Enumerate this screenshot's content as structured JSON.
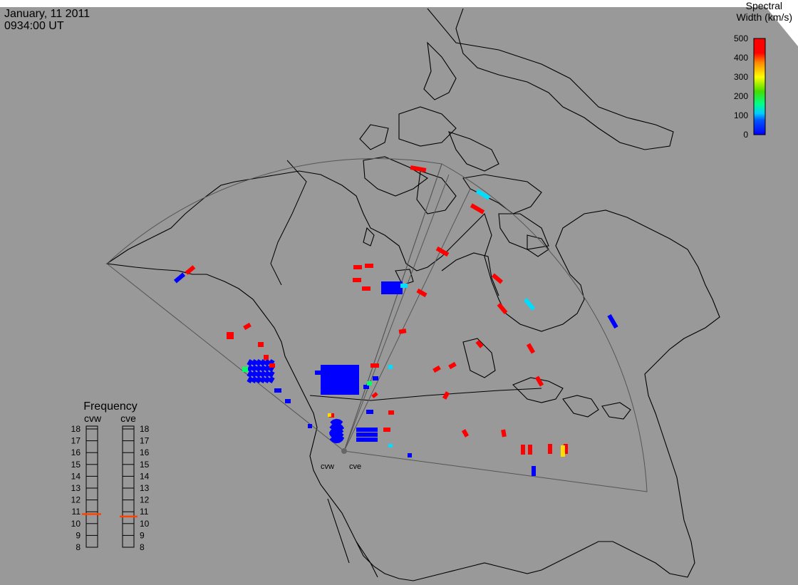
{
  "header": {
    "date": "January, 11 2011",
    "time": "0934:00 UT"
  },
  "colorbar": {
    "title_line1": "Spectral",
    "title_line2": "Width (km/s)",
    "ticks": [
      "500",
      "400",
      "300",
      "200",
      "100",
      "0"
    ],
    "range": [
      0,
      500
    ],
    "colors": [
      "#0000ff",
      "#00aaff",
      "#00ffcc",
      "#33dd00",
      "#ffff00",
      "#ffaa00",
      "#ff0000"
    ]
  },
  "radars": [
    {
      "name": "cvw"
    },
    {
      "name": "cve"
    }
  ],
  "frequency": {
    "title": "Frequency",
    "col_left": "cvw",
    "col_right": "cve",
    "ticks": [
      "18",
      "17",
      "16",
      "15",
      "14",
      "13",
      "12",
      "11",
      "10",
      "9",
      "8"
    ],
    "range": [
      8,
      18
    ],
    "cvw_value": 10.8,
    "cve_value": 10.6,
    "marker_color": "#ff4400"
  },
  "colors": {
    "background": "#999999",
    "land_outline": "#000000",
    "fov_outline": "#555555",
    "red": "#ff0000",
    "blue": "#0000ff",
    "cyan": "#00ddff",
    "green": "#00ff66",
    "yellow": "#ffdd00"
  }
}
